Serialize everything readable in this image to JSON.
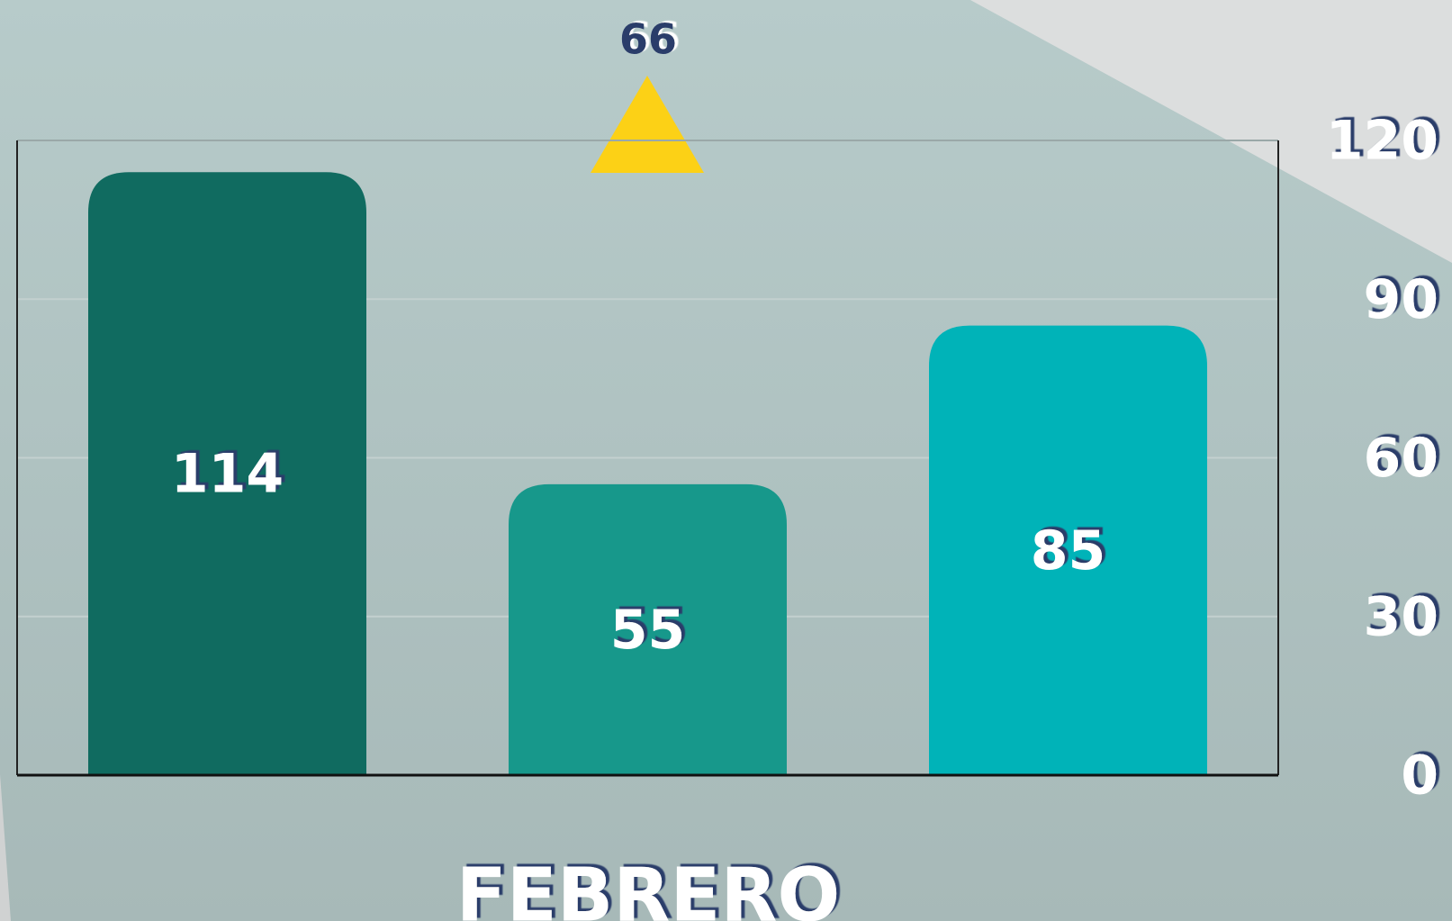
{
  "chart_data": {
    "type": "bar",
    "values": [
      114,
      55,
      85
    ],
    "colors": [
      "#106b60",
      "#17988b",
      "#00b3b8"
    ],
    "x_label": "FEBRERO",
    "marker": {
      "value": 66,
      "color": "#fcd116"
    },
    "ylim": [
      0,
      120
    ],
    "yticks": [
      0,
      30,
      60,
      90,
      120
    ],
    "grid": true
  }
}
